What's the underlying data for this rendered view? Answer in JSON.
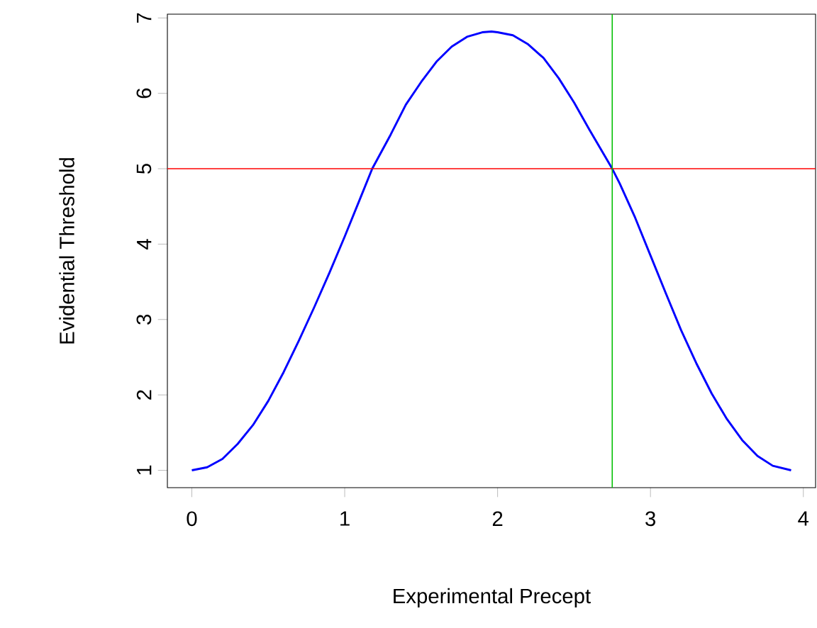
{
  "chart_data": {
    "type": "line",
    "xlabel": "Experimental Precept",
    "ylabel": "Evidential Threshold",
    "xlim": [
      -0.16,
      4.08
    ],
    "ylim": [
      0.77,
      7.05
    ],
    "xticks": [
      0,
      1,
      2,
      3,
      4
    ],
    "yticks": [
      1,
      2,
      3,
      4,
      5,
      6,
      7
    ],
    "grid": false,
    "marker": "none",
    "line_style": "solid",
    "series": [
      {
        "color": "#0000ff",
        "x": [
          0,
          0.1,
          0.2,
          0.3,
          0.4,
          0.5,
          0.6,
          0.7,
          0.8,
          0.9,
          1.0,
          1.1,
          1.18,
          1.3,
          1.4,
          1.5,
          1.6,
          1.7,
          1.8,
          1.9,
          1.96,
          2.0,
          2.1,
          2.2,
          2.3,
          2.4,
          2.5,
          2.6,
          2.75,
          2.8,
          2.9,
          3.0,
          3.1,
          3.2,
          3.3,
          3.4,
          3.5,
          3.6,
          3.7,
          3.8,
          3.92
        ],
        "values": [
          1,
          1.04,
          1.15,
          1.35,
          1.6,
          1.92,
          2.3,
          2.72,
          3.16,
          3.62,
          4.1,
          4.6,
          5.0,
          5.45,
          5.85,
          6.15,
          6.42,
          6.62,
          6.75,
          6.81,
          6.82,
          6.81,
          6.77,
          6.65,
          6.47,
          6.2,
          5.88,
          5.52,
          5.0,
          4.8,
          4.35,
          3.85,
          3.35,
          2.86,
          2.42,
          2.02,
          1.68,
          1.4,
          1.19,
          1.06,
          1
        ]
      }
    ],
    "ref_lines": [
      {
        "axis": "y",
        "value": 5,
        "color": "#ff0000"
      },
      {
        "axis": "x",
        "value": 2.75,
        "color": "#00c000"
      }
    ]
  }
}
